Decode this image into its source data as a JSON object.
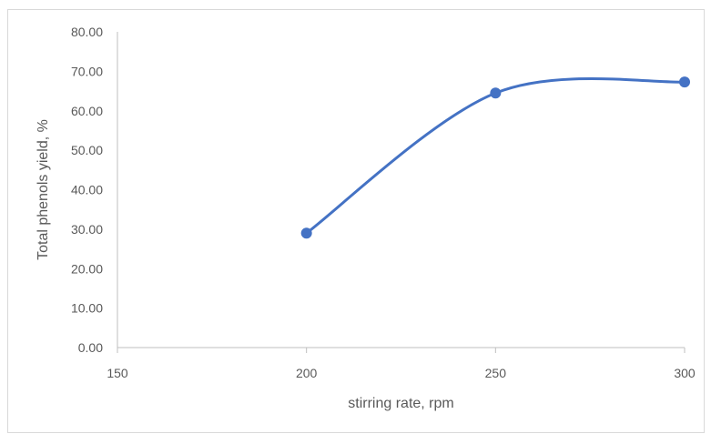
{
  "chart_data": {
    "type": "scatter",
    "title": "",
    "xlabel": "stirring rate, rpm",
    "ylabel": "Total phenols yield, %",
    "xlim": [
      150,
      300
    ],
    "ylim": [
      0,
      80
    ],
    "xticks": [
      "150",
      "200",
      "250",
      "300"
    ],
    "yticks": [
      "0.00",
      "10.00",
      "20.00",
      "30.00",
      "40.00",
      "50.00",
      "60.00",
      "70.00",
      "80.00"
    ],
    "grid": false,
    "smooth_line": true,
    "series": [
      {
        "x": [
          200,
          250,
          300
        ],
        "y": [
          29.0,
          64.5,
          67.3
        ],
        "color": "#4472C4"
      }
    ]
  }
}
